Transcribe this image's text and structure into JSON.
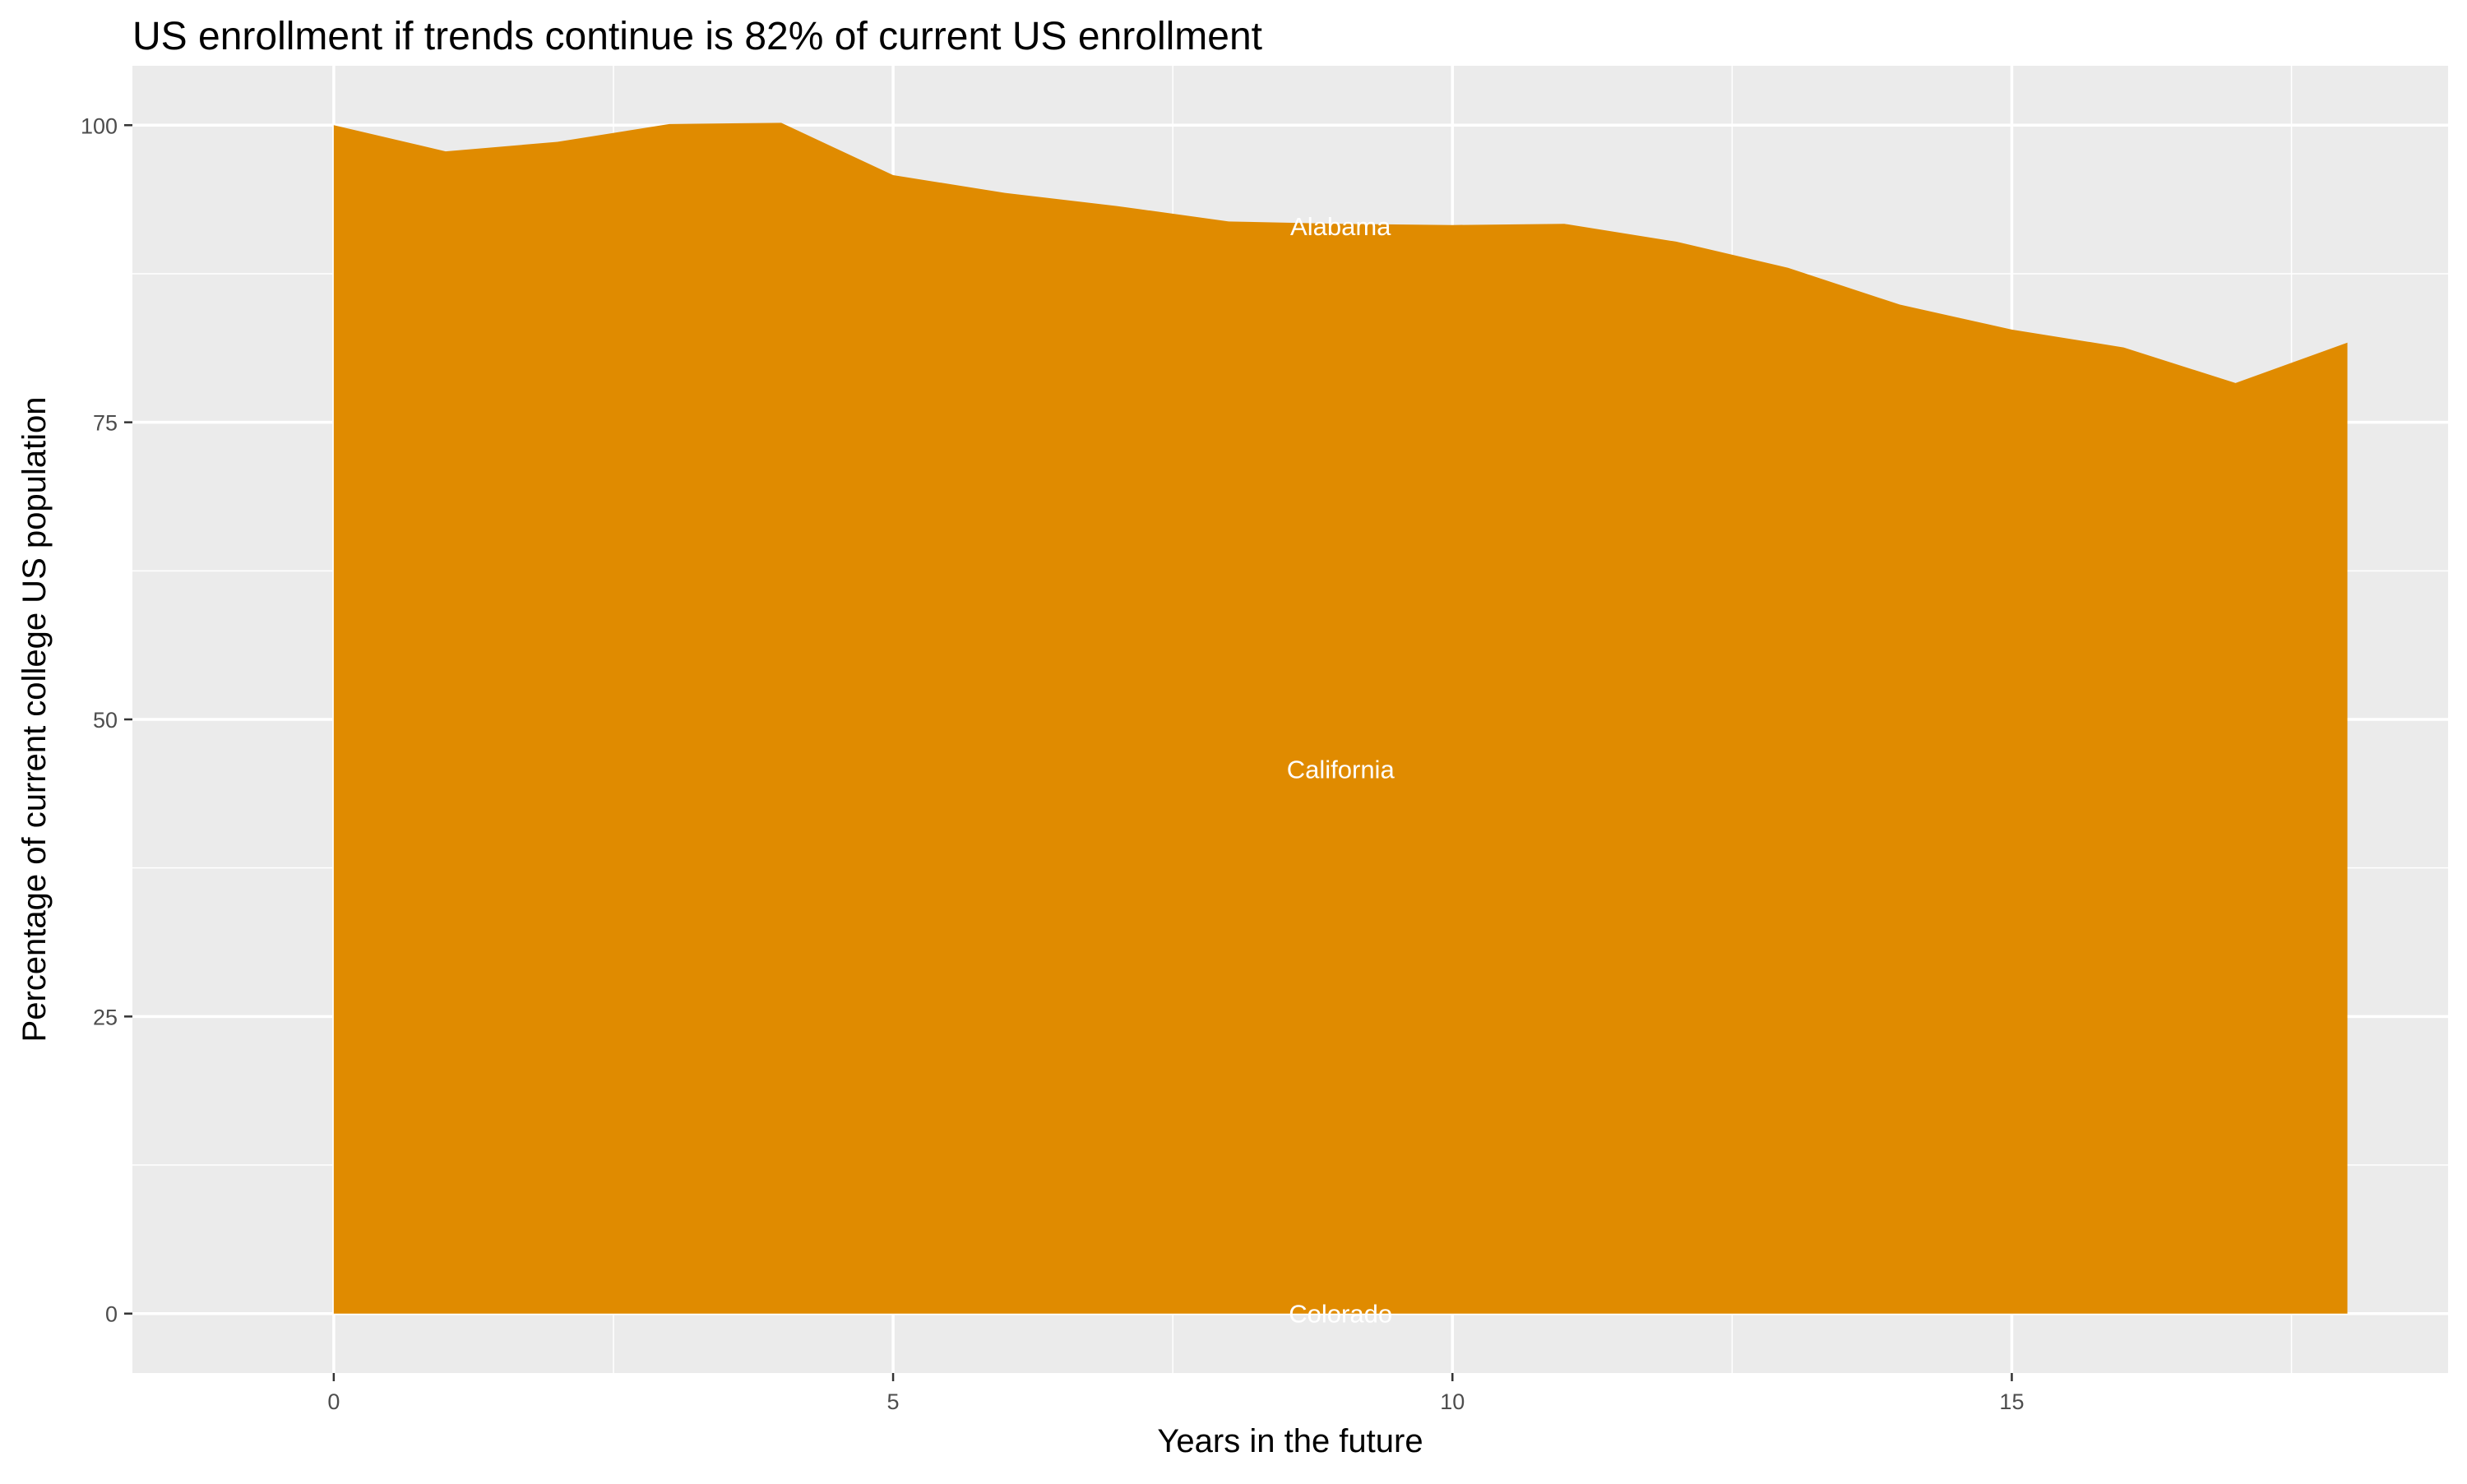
{
  "chart_data": {
    "type": "area",
    "title": "US enrollment if trends continue is 82% of current US enrollment",
    "xlabel": "Years in the future",
    "ylabel": "Percentage of current college US population",
    "xlim": [
      -1.8,
      18.9
    ],
    "ylim": [
      -5,
      105
    ],
    "x_ticks": [
      0,
      5,
      10,
      15
    ],
    "y_ticks": [
      0,
      25,
      50,
      75,
      100
    ],
    "grid": true,
    "fill_color": "#E08B00",
    "background_color": "#EBEBEB",
    "x": [
      0,
      1,
      2,
      3,
      4,
      5,
      6,
      7,
      8,
      9,
      10,
      11,
      12,
      13,
      14,
      15,
      16,
      17,
      18
    ],
    "values": [
      100,
      97.8,
      98.6,
      100.1,
      100.2,
      95.8,
      94.3,
      93.2,
      91.9,
      91.7,
      91.6,
      91.7,
      90.2,
      88.0,
      84.9,
      82.8,
      81.3,
      78.3,
      81.7
    ],
    "annotations": [
      {
        "text": "Alabama",
        "x": 9,
        "y": 91.5
      },
      {
        "text": "California",
        "x": 9,
        "y": 45.8
      },
      {
        "text": "Colorado",
        "x": 9,
        "y": 0
      }
    ]
  }
}
